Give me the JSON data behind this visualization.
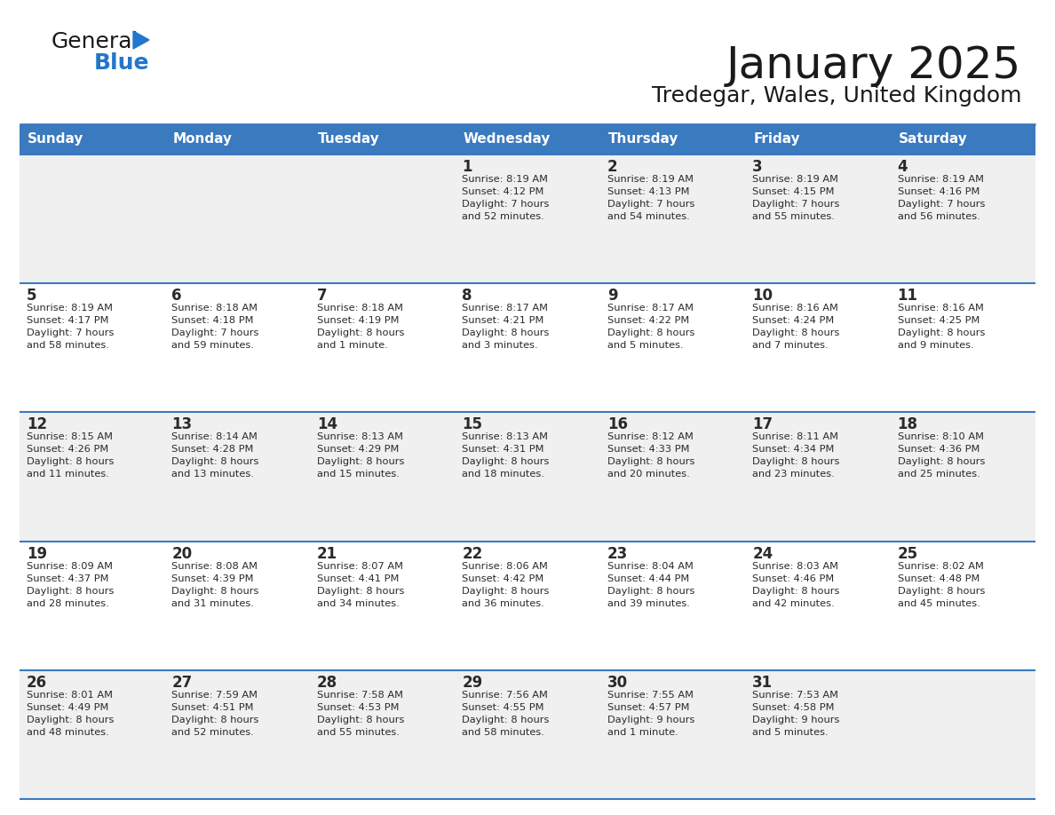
{
  "title": "January 2025",
  "subtitle": "Tredegar, Wales, United Kingdom",
  "days_of_week": [
    "Sunday",
    "Monday",
    "Tuesday",
    "Wednesday",
    "Thursday",
    "Friday",
    "Saturday"
  ],
  "header_bg": "#3a7abf",
  "header_text": "#ffffff",
  "cell_bg_odd": "#f0f0f0",
  "cell_bg_even": "#ffffff",
  "row_line_color": "#3a7abf",
  "title_color": "#1a1a1a",
  "subtitle_color": "#1a1a1a",
  "day_number_color": "#2a2a2a",
  "info_text_color": "#2a2a2a",
  "logo_general_color": "#1a1a1a",
  "logo_blue_color": "#2277cc",
  "logo_triangle_color": "#2277cc",
  "calendar": [
    [
      {
        "day": "",
        "info": ""
      },
      {
        "day": "",
        "info": ""
      },
      {
        "day": "",
        "info": ""
      },
      {
        "day": "1",
        "info": "Sunrise: 8:19 AM\nSunset: 4:12 PM\nDaylight: 7 hours\nand 52 minutes."
      },
      {
        "day": "2",
        "info": "Sunrise: 8:19 AM\nSunset: 4:13 PM\nDaylight: 7 hours\nand 54 minutes."
      },
      {
        "day": "3",
        "info": "Sunrise: 8:19 AM\nSunset: 4:15 PM\nDaylight: 7 hours\nand 55 minutes."
      },
      {
        "day": "4",
        "info": "Sunrise: 8:19 AM\nSunset: 4:16 PM\nDaylight: 7 hours\nand 56 minutes."
      }
    ],
    [
      {
        "day": "5",
        "info": "Sunrise: 8:19 AM\nSunset: 4:17 PM\nDaylight: 7 hours\nand 58 minutes."
      },
      {
        "day": "6",
        "info": "Sunrise: 8:18 AM\nSunset: 4:18 PM\nDaylight: 7 hours\nand 59 minutes."
      },
      {
        "day": "7",
        "info": "Sunrise: 8:18 AM\nSunset: 4:19 PM\nDaylight: 8 hours\nand 1 minute."
      },
      {
        "day": "8",
        "info": "Sunrise: 8:17 AM\nSunset: 4:21 PM\nDaylight: 8 hours\nand 3 minutes."
      },
      {
        "day": "9",
        "info": "Sunrise: 8:17 AM\nSunset: 4:22 PM\nDaylight: 8 hours\nand 5 minutes."
      },
      {
        "day": "10",
        "info": "Sunrise: 8:16 AM\nSunset: 4:24 PM\nDaylight: 8 hours\nand 7 minutes."
      },
      {
        "day": "11",
        "info": "Sunrise: 8:16 AM\nSunset: 4:25 PM\nDaylight: 8 hours\nand 9 minutes."
      }
    ],
    [
      {
        "day": "12",
        "info": "Sunrise: 8:15 AM\nSunset: 4:26 PM\nDaylight: 8 hours\nand 11 minutes."
      },
      {
        "day": "13",
        "info": "Sunrise: 8:14 AM\nSunset: 4:28 PM\nDaylight: 8 hours\nand 13 minutes."
      },
      {
        "day": "14",
        "info": "Sunrise: 8:13 AM\nSunset: 4:29 PM\nDaylight: 8 hours\nand 15 minutes."
      },
      {
        "day": "15",
        "info": "Sunrise: 8:13 AM\nSunset: 4:31 PM\nDaylight: 8 hours\nand 18 minutes."
      },
      {
        "day": "16",
        "info": "Sunrise: 8:12 AM\nSunset: 4:33 PM\nDaylight: 8 hours\nand 20 minutes."
      },
      {
        "day": "17",
        "info": "Sunrise: 8:11 AM\nSunset: 4:34 PM\nDaylight: 8 hours\nand 23 minutes."
      },
      {
        "day": "18",
        "info": "Sunrise: 8:10 AM\nSunset: 4:36 PM\nDaylight: 8 hours\nand 25 minutes."
      }
    ],
    [
      {
        "day": "19",
        "info": "Sunrise: 8:09 AM\nSunset: 4:37 PM\nDaylight: 8 hours\nand 28 minutes."
      },
      {
        "day": "20",
        "info": "Sunrise: 8:08 AM\nSunset: 4:39 PM\nDaylight: 8 hours\nand 31 minutes."
      },
      {
        "day": "21",
        "info": "Sunrise: 8:07 AM\nSunset: 4:41 PM\nDaylight: 8 hours\nand 34 minutes."
      },
      {
        "day": "22",
        "info": "Sunrise: 8:06 AM\nSunset: 4:42 PM\nDaylight: 8 hours\nand 36 minutes."
      },
      {
        "day": "23",
        "info": "Sunrise: 8:04 AM\nSunset: 4:44 PM\nDaylight: 8 hours\nand 39 minutes."
      },
      {
        "day": "24",
        "info": "Sunrise: 8:03 AM\nSunset: 4:46 PM\nDaylight: 8 hours\nand 42 minutes."
      },
      {
        "day": "25",
        "info": "Sunrise: 8:02 AM\nSunset: 4:48 PM\nDaylight: 8 hours\nand 45 minutes."
      }
    ],
    [
      {
        "day": "26",
        "info": "Sunrise: 8:01 AM\nSunset: 4:49 PM\nDaylight: 8 hours\nand 48 minutes."
      },
      {
        "day": "27",
        "info": "Sunrise: 7:59 AM\nSunset: 4:51 PM\nDaylight: 8 hours\nand 52 minutes."
      },
      {
        "day": "28",
        "info": "Sunrise: 7:58 AM\nSunset: 4:53 PM\nDaylight: 8 hours\nand 55 minutes."
      },
      {
        "day": "29",
        "info": "Sunrise: 7:56 AM\nSunset: 4:55 PM\nDaylight: 8 hours\nand 58 minutes."
      },
      {
        "day": "30",
        "info": "Sunrise: 7:55 AM\nSunset: 4:57 PM\nDaylight: 9 hours\nand 1 minute."
      },
      {
        "day": "31",
        "info": "Sunrise: 7:53 AM\nSunset: 4:58 PM\nDaylight: 9 hours\nand 5 minutes."
      },
      {
        "day": "",
        "info": ""
      }
    ]
  ]
}
